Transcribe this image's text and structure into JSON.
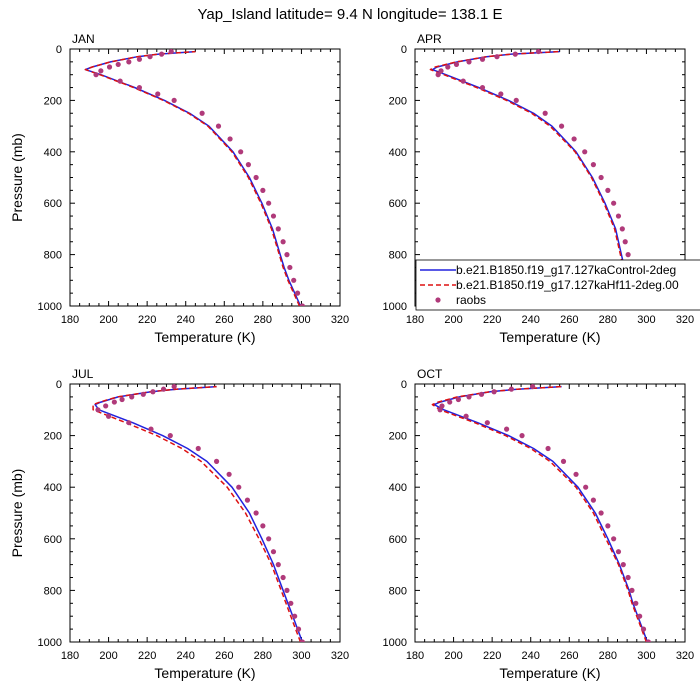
{
  "title": "Yap_Island  latitude= 9.4 N longitude= 138.1 E",
  "colors": {
    "control": "#2222dd",
    "case": "#dd1111",
    "raobs": "#b03a7a"
  },
  "legend": {
    "panel": "APR",
    "entries": [
      {
        "label": "b.e21.B1850.f19_g17.127kaControl-2deg",
        "style": "solid-line",
        "color": "#2222dd"
      },
      {
        "label": "b.e21.B1850.f19_g17.127kaHf11-2deg.00",
        "style": "dashed-line",
        "color": "#dd1111"
      },
      {
        "label": "raobs",
        "style": "dot",
        "color": "#b03a7a"
      }
    ]
  },
  "chart_data": [
    {
      "type": "line",
      "title": "JAN",
      "xlabel": "Temperature (K)",
      "ylabel": "Pressure (mb)",
      "xlim": [
        180,
        320
      ],
      "ylim": [
        1000,
        0
      ],
      "y_reversed": true,
      "xticks": [
        180,
        200,
        220,
        240,
        260,
        280,
        300,
        320
      ],
      "yticks": [
        0,
        200,
        400,
        600,
        800,
        1000
      ],
      "pressure": [
        1000,
        950,
        900,
        850,
        800,
        700,
        600,
        500,
        400,
        300,
        250,
        200,
        150,
        100,
        80,
        70,
        50,
        30,
        20,
        10
      ],
      "series": [
        {
          "name": "b.e21.B1850.f19_g17.127kaControl-2deg",
          "style": "solid",
          "t": [
            299.5,
            296.5,
            293.5,
            291.0,
            289.0,
            285.0,
            279.5,
            273.0,
            264.5,
            252.0,
            242.0,
            229.0,
            213.5,
            196.0,
            188.0,
            191.5,
            201.0,
            215.0,
            226.0,
            245.0
          ]
        },
        {
          "name": "b.e21.B1850.f19_g17.127kaHf11-2deg.00",
          "style": "dashed",
          "t": [
            299.0,
            296.0,
            293.0,
            290.5,
            288.5,
            284.5,
            279.0,
            272.5,
            264.0,
            251.5,
            241.5,
            228.5,
            213.0,
            195.5,
            188.0,
            191.5,
            201.0,
            215.0,
            226.0,
            245.0
          ]
        }
      ],
      "raobs": {
        "name": "raobs",
        "pressure": [
          1000,
          950,
          900,
          850,
          800,
          750,
          700,
          650,
          600,
          550,
          500,
          450,
          400,
          350,
          300,
          250,
          200,
          175,
          150,
          125,
          100,
          85,
          70,
          60,
          50,
          40,
          30,
          20,
          10
        ],
        "t": [
          300.5,
          298.0,
          296.0,
          294.0,
          292.5,
          290.5,
          288.0,
          285.5,
          283.0,
          280.0,
          276.5,
          272.5,
          268.5,
          263.0,
          257.0,
          248.5,
          234.0,
          225.5,
          216.0,
          206.0,
          193.5,
          196.0,
          200.5,
          205.0,
          210.5,
          216.0,
          221.5,
          227.5,
          232.5
        ]
      }
    },
    {
      "type": "line",
      "title": "APR",
      "xlabel": "Temperature (K)",
      "ylabel": "",
      "xlim": [
        180,
        320
      ],
      "ylim": [
        1000,
        0
      ],
      "y_reversed": true,
      "xticks": [
        180,
        200,
        220,
        240,
        260,
        280,
        300,
        320
      ],
      "yticks": [
        0,
        200,
        400,
        600,
        800,
        1000
      ],
      "pressure": [
        1000,
        950,
        900,
        850,
        800,
        700,
        600,
        500,
        400,
        300,
        250,
        200,
        150,
        100,
        80,
        70,
        50,
        30,
        20,
        10
      ],
      "series": [
        {
          "name": "b.e21.B1850.f19_g17.127kaControl-2deg",
          "style": "solid",
          "t": [
            299.5,
            295.0,
            291.0,
            288.5,
            287.0,
            284.0,
            278.5,
            272.0,
            263.5,
            251.0,
            241.5,
            228.5,
            213.0,
            196.0,
            189.0,
            191.5,
            202.0,
            217.0,
            230.0,
            255.0
          ]
        },
        {
          "name": "b.e21.B1850.f19_g17.127kaHf11-2deg.00",
          "style": "dashed",
          "t": [
            299.0,
            294.5,
            290.5,
            288.0,
            286.5,
            283.5,
            278.0,
            271.5,
            263.0,
            250.0,
            240.5,
            227.5,
            212.0,
            195.0,
            188.0,
            190.5,
            201.5,
            217.0,
            230.0,
            255.0
          ]
        }
      ],
      "raobs": {
        "name": "raobs",
        "pressure": [
          1000,
          950,
          900,
          850,
          800,
          750,
          700,
          650,
          600,
          550,
          500,
          450,
          400,
          350,
          300,
          250,
          200,
          175,
          150,
          125,
          100,
          85,
          70,
          60,
          50,
          40,
          30,
          20,
          10
        ],
        "t": [
          300.0,
          297.5,
          294.5,
          292.5,
          290.5,
          289.0,
          287.5,
          285.5,
          283.0,
          280.0,
          276.5,
          272.5,
          268.0,
          262.5,
          256.0,
          247.5,
          232.5,
          224.5,
          215.0,
          205.0,
          192.0,
          193.5,
          197.0,
          201.5,
          208.0,
          215.0,
          222.5,
          232.0,
          244.0
        ]
      }
    },
    {
      "type": "line",
      "title": "JUL",
      "xlabel": "Temperature (K)",
      "ylabel": "Pressure (mb)",
      "xlim": [
        180,
        320
      ],
      "ylim": [
        1000,
        0
      ],
      "y_reversed": true,
      "xticks": [
        180,
        200,
        220,
        240,
        260,
        280,
        300,
        320
      ],
      "yticks": [
        0,
        200,
        400,
        600,
        800,
        1000
      ],
      "pressure": [
        1000,
        950,
        900,
        850,
        800,
        700,
        600,
        500,
        400,
        300,
        250,
        200,
        150,
        100,
        80,
        70,
        50,
        30,
        20,
        10
      ],
      "series": [
        {
          "name": "b.e21.B1850.f19_g17.127kaControl-2deg",
          "style": "solid",
          "t": [
            300.5,
            298.0,
            295.5,
            293.0,
            290.5,
            285.5,
            279.5,
            273.0,
            264.0,
            251.0,
            241.0,
            228.0,
            212.5,
            195.0,
            193.0,
            196.0,
            205.0,
            222.0,
            235.0,
            256.0
          ]
        },
        {
          "name": "b.e21.B1850.f19_g17.127kaHf11-2deg.00",
          "style": "dashed",
          "t": [
            299.5,
            297.0,
            294.5,
            292.0,
            289.5,
            284.5,
            278.0,
            271.0,
            261.5,
            248.0,
            238.0,
            225.0,
            209.0,
            192.0,
            192.0,
            195.5,
            204.5,
            222.0,
            235.0,
            256.0
          ]
        }
      ],
      "raobs": {
        "name": "raobs",
        "pressure": [
          1000,
          950,
          900,
          850,
          800,
          750,
          700,
          650,
          600,
          550,
          500,
          450,
          400,
          350,
          300,
          250,
          200,
          175,
          150,
          125,
          100,
          85,
          70,
          60,
          50,
          40,
          30,
          20,
          10
        ],
        "t": [
          300.5,
          298.5,
          296.5,
          294.5,
          292.5,
          290.5,
          288.0,
          285.5,
          283.0,
          280.0,
          276.5,
          272.0,
          267.5,
          262.5,
          256.0,
          246.5,
          232.0,
          222.0,
          210.5,
          200.0,
          194.5,
          198.5,
          203.0,
          207.0,
          212.0,
          218.0,
          223.0,
          228.5,
          234.0
        ]
      }
    },
    {
      "type": "line",
      "title": "OCT",
      "xlabel": "Temperature (K)",
      "ylabel": "",
      "xlim": [
        180,
        320
      ],
      "ylim": [
        1000,
        0
      ],
      "y_reversed": true,
      "xticks": [
        180,
        200,
        220,
        240,
        260,
        280,
        300,
        320
      ],
      "yticks": [
        0,
        200,
        400,
        600,
        800,
        1000
      ],
      "pressure": [
        1000,
        950,
        900,
        850,
        800,
        700,
        600,
        500,
        400,
        300,
        250,
        200,
        150,
        100,
        80,
        70,
        50,
        30,
        20,
        10
      ],
      "series": [
        {
          "name": "b.e21.B1850.f19_g17.127kaControl-2deg",
          "style": "solid",
          "t": [
            300.5,
            298.0,
            295.5,
            293.0,
            291.0,
            286.0,
            280.0,
            273.5,
            264.5,
            251.5,
            241.5,
            228.5,
            212.5,
            195.0,
            190.0,
            193.0,
            203.0,
            219.0,
            233.0,
            256.0
          ]
        },
        {
          "name": "b.e21.B1850.f19_g17.127kaHf11-2deg.00",
          "style": "dashed",
          "t": [
            300.0,
            297.5,
            295.0,
            292.5,
            290.5,
            285.5,
            279.0,
            272.5,
            263.5,
            250.0,
            240.0,
            227.0,
            211.0,
            193.0,
            189.0,
            192.0,
            202.0,
            219.0,
            233.0,
            256.0
          ]
        }
      ],
      "raobs": {
        "name": "raobs",
        "pressure": [
          1000,
          950,
          900,
          850,
          800,
          750,
          700,
          650,
          600,
          550,
          500,
          450,
          400,
          350,
          300,
          250,
          200,
          175,
          150,
          125,
          100,
          85,
          70,
          60,
          50,
          40,
          30,
          20,
          10
        ],
        "t": [
          301.0,
          298.5,
          296.5,
          294.5,
          292.5,
          290.5,
          288.0,
          285.5,
          283.0,
          280.0,
          276.5,
          272.5,
          268.5,
          263.5,
          257.0,
          249.0,
          235.5,
          227.5,
          217.5,
          206.5,
          193.0,
          194.0,
          198.0,
          202.5,
          208.0,
          214.5,
          221.0,
          230.0,
          241.0
        ]
      }
    }
  ]
}
